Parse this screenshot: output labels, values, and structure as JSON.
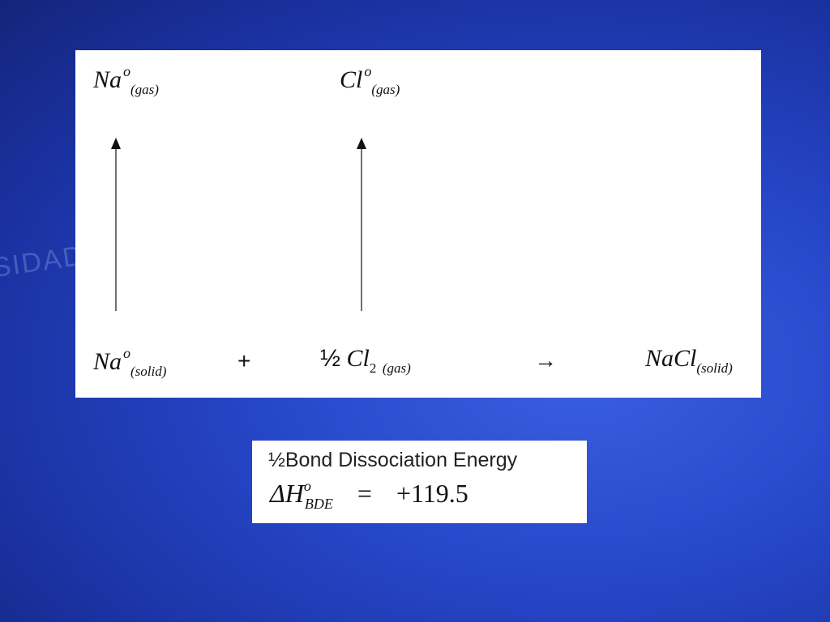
{
  "background": {
    "watermark": "SIDAD NA"
  },
  "diagram": {
    "top": [
      {
        "symbol": "Na",
        "superscript": "o",
        "subscript": "(gas)"
      },
      {
        "symbol": "Cl",
        "superscript": "o",
        "subscript": "(gas)"
      }
    ],
    "equation": [
      {
        "symbol": "Na",
        "superscript": "o",
        "subscript": "(solid)"
      },
      {
        "operator": "+"
      },
      {
        "coefficient": "½",
        "symbol": "Cl",
        "subscript": "2",
        "state": "(gas)"
      },
      {
        "operator": "→"
      },
      {
        "symbol": "NaCl",
        "subscript": "(solid)"
      }
    ]
  },
  "energy_box": {
    "label_fraction": "½",
    "label": "Bond Dissociation Energy",
    "symbol": "ΔH",
    "superscript": "o",
    "subscript": "BDE",
    "equals": "=",
    "value": "+119.5"
  }
}
